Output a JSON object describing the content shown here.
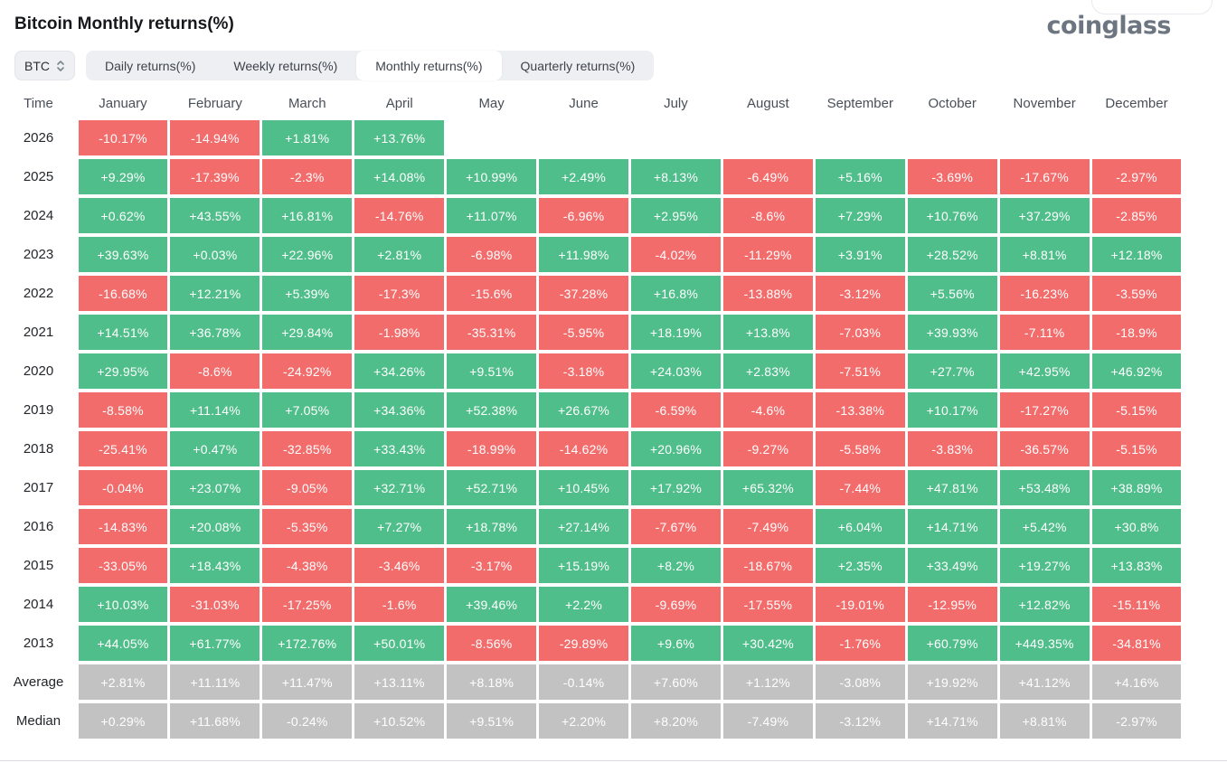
{
  "header": {
    "title": "Bitcoin Monthly returns(%)",
    "logo": "coinglass"
  },
  "controls": {
    "coin_selector": {
      "value": "BTC"
    },
    "tabs": [
      {
        "label": "Daily returns(%)",
        "active": false
      },
      {
        "label": "Weekly returns(%)",
        "active": false
      },
      {
        "label": "Monthly returns(%)",
        "active": true
      },
      {
        "label": "Quarterly returns(%)",
        "active": false
      }
    ]
  },
  "colors": {
    "positive": "#50BE8B",
    "negative": "#F36C6C",
    "summary": "#C2C2C2"
  },
  "table": {
    "time_header": "Time",
    "months": [
      "January",
      "February",
      "March",
      "April",
      "May",
      "June",
      "July",
      "August",
      "September",
      "October",
      "November",
      "December"
    ],
    "rows": [
      {
        "label": "2026",
        "type": "year",
        "values": [
          "-10.17%",
          "-14.94%",
          "+1.81%",
          "+13.76%",
          null,
          null,
          null,
          null,
          null,
          null,
          null,
          null
        ]
      },
      {
        "label": "2025",
        "type": "year",
        "values": [
          "+9.29%",
          "-17.39%",
          "-2.3%",
          "+14.08%",
          "+10.99%",
          "+2.49%",
          "+8.13%",
          "-6.49%",
          "+5.16%",
          "-3.69%",
          "-17.67%",
          "-2.97%"
        ]
      },
      {
        "label": "2024",
        "type": "year",
        "values": [
          "+0.62%",
          "+43.55%",
          "+16.81%",
          "-14.76%",
          "+11.07%",
          "-6.96%",
          "+2.95%",
          "-8.6%",
          "+7.29%",
          "+10.76%",
          "+37.29%",
          "-2.85%"
        ]
      },
      {
        "label": "2023",
        "type": "year",
        "values": [
          "+39.63%",
          "+0.03%",
          "+22.96%",
          "+2.81%",
          "-6.98%",
          "+11.98%",
          "-4.02%",
          "-11.29%",
          "+3.91%",
          "+28.52%",
          "+8.81%",
          "+12.18%"
        ]
      },
      {
        "label": "2022",
        "type": "year",
        "values": [
          "-16.68%",
          "+12.21%",
          "+5.39%",
          "-17.3%",
          "-15.6%",
          "-37.28%",
          "+16.8%",
          "-13.88%",
          "-3.12%",
          "+5.56%",
          "-16.23%",
          "-3.59%"
        ]
      },
      {
        "label": "2021",
        "type": "year",
        "values": [
          "+14.51%",
          "+36.78%",
          "+29.84%",
          "-1.98%",
          "-35.31%",
          "-5.95%",
          "+18.19%",
          "+13.8%",
          "-7.03%",
          "+39.93%",
          "-7.11%",
          "-18.9%"
        ]
      },
      {
        "label": "2020",
        "type": "year",
        "values": [
          "+29.95%",
          "-8.6%",
          "-24.92%",
          "+34.26%",
          "+9.51%",
          "-3.18%",
          "+24.03%",
          "+2.83%",
          "-7.51%",
          "+27.7%",
          "+42.95%",
          "+46.92%"
        ]
      },
      {
        "label": "2019",
        "type": "year",
        "values": [
          "-8.58%",
          "+11.14%",
          "+7.05%",
          "+34.36%",
          "+52.38%",
          "+26.67%",
          "-6.59%",
          "-4.6%",
          "-13.38%",
          "+10.17%",
          "-17.27%",
          "-5.15%"
        ]
      },
      {
        "label": "2018",
        "type": "year",
        "values": [
          "-25.41%",
          "+0.47%",
          "-32.85%",
          "+33.43%",
          "-18.99%",
          "-14.62%",
          "+20.96%",
          "-9.27%",
          "-5.58%",
          "-3.83%",
          "-36.57%",
          "-5.15%"
        ]
      },
      {
        "label": "2017",
        "type": "year",
        "values": [
          "-0.04%",
          "+23.07%",
          "-9.05%",
          "+32.71%",
          "+52.71%",
          "+10.45%",
          "+17.92%",
          "+65.32%",
          "-7.44%",
          "+47.81%",
          "+53.48%",
          "+38.89%"
        ]
      },
      {
        "label": "2016",
        "type": "year",
        "values": [
          "-14.83%",
          "+20.08%",
          "-5.35%",
          "+7.27%",
          "+18.78%",
          "+27.14%",
          "-7.67%",
          "-7.49%",
          "+6.04%",
          "+14.71%",
          "+5.42%",
          "+30.8%"
        ]
      },
      {
        "label": "2015",
        "type": "year",
        "values": [
          "-33.05%",
          "+18.43%",
          "-4.38%",
          "-3.46%",
          "-3.17%",
          "+15.19%",
          "+8.2%",
          "-18.67%",
          "+2.35%",
          "+33.49%",
          "+19.27%",
          "+13.83%"
        ]
      },
      {
        "label": "2014",
        "type": "year",
        "values": [
          "+10.03%",
          "-31.03%",
          "-17.25%",
          "-1.6%",
          "+39.46%",
          "+2.2%",
          "-9.69%",
          "-17.55%",
          "-19.01%",
          "-12.95%",
          "+12.82%",
          "-15.11%"
        ]
      },
      {
        "label": "2013",
        "type": "year",
        "values": [
          "+44.05%",
          "+61.77%",
          "+172.76%",
          "+50.01%",
          "-8.56%",
          "-29.89%",
          "+9.6%",
          "+30.42%",
          "-1.76%",
          "+60.79%",
          "+449.35%",
          "-34.81%"
        ]
      },
      {
        "label": "Average",
        "type": "summary",
        "values": [
          "+2.81%",
          "+11.11%",
          "+11.47%",
          "+13.11%",
          "+8.18%",
          "-0.14%",
          "+7.60%",
          "+1.12%",
          "-3.08%",
          "+19.92%",
          "+41.12%",
          "+4.16%"
        ]
      },
      {
        "label": "Median",
        "type": "summary",
        "values": [
          "+0.29%",
          "+11.68%",
          "-0.24%",
          "+10.52%",
          "+9.51%",
          "+2.20%",
          "+8.20%",
          "-7.49%",
          "-3.12%",
          "+14.71%",
          "+8.81%",
          "-2.97%"
        ]
      }
    ]
  }
}
